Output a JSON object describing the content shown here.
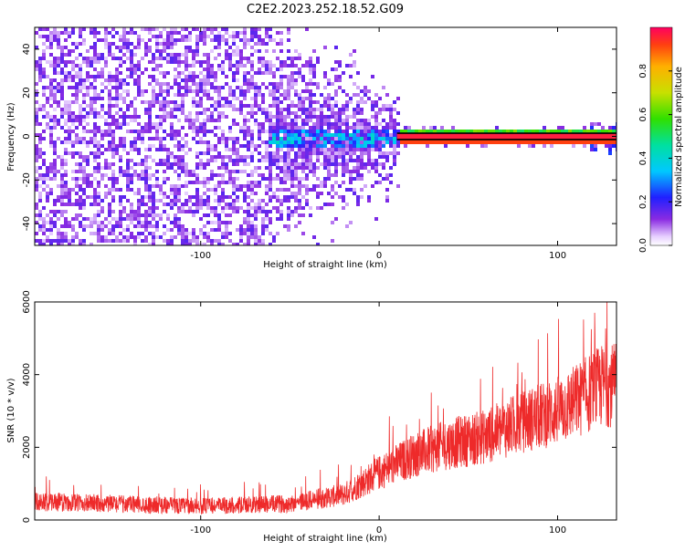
{
  "chart_data": [
    {
      "type": "heatmap",
      "title": "C2E2.2023.252.18.52.G09",
      "xlabel": "Height of straight line (km)",
      "ylabel": "Frequency (Hz)",
      "xlim": [
        -193,
        133
      ],
      "ylim": [
        -50,
        50
      ],
      "xticks": [
        "-100",
        "0",
        "100"
      ],
      "xtick_values": [
        -100,
        0,
        100
      ],
      "yticks": [
        "-40",
        "-20",
        "0",
        "20",
        "40"
      ],
      "ytick_values": [
        -40,
        -20,
        0,
        20,
        40
      ],
      "colorbar": {
        "label": "Normalized spectral amplitude",
        "ticks": [
          "0.0",
          "0.2",
          "0.4",
          "0.6",
          "0.8"
        ],
        "tick_values": [
          0.0,
          0.2,
          0.4,
          0.6,
          0.8
        ],
        "range": [
          0,
          1
        ]
      },
      "regions": [
        {
          "x_range": [
            -193,
            -62
          ],
          "description_level": 0.15,
          "spread_hz": 50
        },
        {
          "x_range": [
            -62,
            10
          ],
          "description_level": 0.3,
          "spread_hz": 25
        },
        {
          "x_range": [
            10,
            133
          ],
          "line_at_hz": 0,
          "peak_level": 0.95
        }
      ]
    },
    {
      "type": "line",
      "title": "",
      "xlabel": "Height of straight line (km)",
      "ylabel": "SNR (10 * v/v)",
      "xlim": [
        -193,
        133
      ],
      "ylim": [
        0,
        6000
      ],
      "xticks": [
        "-100",
        "0",
        "100"
      ],
      "xtick_values": [
        -100,
        0,
        100
      ],
      "yticks": [
        "0",
        "2000",
        "4000",
        "6000"
      ],
      "ytick_values": [
        0,
        2000,
        4000,
        6000
      ],
      "color": "#ee2a2a",
      "trend": [
        {
          "x": -193,
          "y": 500
        },
        {
          "x": -150,
          "y": 450
        },
        {
          "x": -100,
          "y": 380
        },
        {
          "x": -50,
          "y": 450
        },
        {
          "x": -20,
          "y": 700
        },
        {
          "x": 0,
          "y": 1300
        },
        {
          "x": 20,
          "y": 1800
        },
        {
          "x": 40,
          "y": 2100
        },
        {
          "x": 60,
          "y": 2300
        },
        {
          "x": 80,
          "y": 2700
        },
        {
          "x": 100,
          "y": 3000
        },
        {
          "x": 115,
          "y": 3400
        },
        {
          "x": 125,
          "y": 3700
        },
        {
          "x": 133,
          "y": 3700
        }
      ]
    }
  ]
}
